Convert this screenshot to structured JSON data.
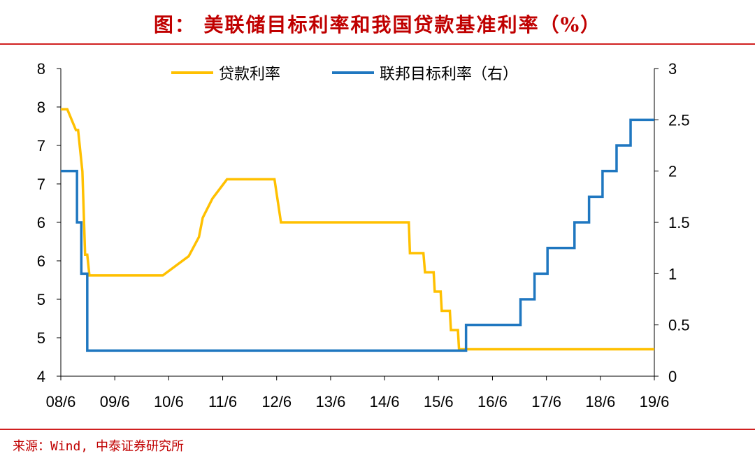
{
  "title": "图：  美联储目标利率和我国贷款基准利率（%）",
  "source": "来源：Wind, 中泰证券研究所",
  "chart_data": {
    "type": "line",
    "title": "美联储目标利率和我国贷款基准利率（%）",
    "x_ticks": [
      {
        "year": 2008.5,
        "label": "08/6"
      },
      {
        "year": 2009.5,
        "label": "09/6"
      },
      {
        "year": 2010.5,
        "label": "10/6"
      },
      {
        "year": 2011.5,
        "label": "11/6"
      },
      {
        "year": 2012.5,
        "label": "12/6"
      },
      {
        "year": 2013.5,
        "label": "13/6"
      },
      {
        "year": 2014.5,
        "label": "14/6"
      },
      {
        "year": 2015.5,
        "label": "15/6"
      },
      {
        "year": 2016.5,
        "label": "16/6"
      },
      {
        "year": 2017.5,
        "label": "17/6"
      },
      {
        "year": 2018.5,
        "label": "18/6"
      },
      {
        "year": 2019.5,
        "label": "19/6"
      }
    ],
    "xlim": [
      2008.5,
      2019.5
    ],
    "y_left": {
      "ylim": [
        4,
        8
      ],
      "ticks": [
        {
          "v": 8,
          "label": "8"
        },
        {
          "v": 7.5,
          "label": "8"
        },
        {
          "v": 7,
          "label": "7"
        },
        {
          "v": 6.5,
          "label": "7"
        },
        {
          "v": 6,
          "label": "6"
        },
        {
          "v": 5.5,
          "label": "6"
        },
        {
          "v": 5,
          "label": "5"
        },
        {
          "v": 4.5,
          "label": "5"
        },
        {
          "v": 4,
          "label": "4"
        }
      ]
    },
    "y_right": {
      "ylim": [
        0,
        3
      ],
      "ticks": [
        {
          "v": 3,
          "label": "3"
        },
        {
          "v": 2.5,
          "label": "2.5"
        },
        {
          "v": 2,
          "label": "2"
        },
        {
          "v": 1.5,
          "label": "1.5"
        },
        {
          "v": 1,
          "label": "1"
        },
        {
          "v": 0.5,
          "label": "0.5"
        },
        {
          "v": 0,
          "label": "0"
        }
      ]
    },
    "legend_position": "top-center",
    "series": [
      {
        "name": "贷款利率",
        "axis": "left",
        "color": "#ffc000",
        "points": [
          [
            2008.5,
            7.47
          ],
          [
            2008.62,
            7.47
          ],
          [
            2008.78,
            7.2
          ],
          [
            2008.82,
            7.2
          ],
          [
            2008.86,
            6.93
          ],
          [
            2008.9,
            6.66
          ],
          [
            2008.95,
            5.58
          ],
          [
            2008.99,
            5.58
          ],
          [
            2009.03,
            5.31
          ],
          [
            2010.39,
            5.31
          ],
          [
            2010.87,
            5.56
          ],
          [
            2011.06,
            5.81
          ],
          [
            2011.13,
            6.06
          ],
          [
            2011.31,
            6.31
          ],
          [
            2011.58,
            6.56
          ],
          [
            2012.46,
            6.56
          ],
          [
            2012.58,
            6.0
          ],
          [
            2014.95,
            6.0
          ],
          [
            2014.97,
            5.6
          ],
          [
            2015.22,
            5.6
          ],
          [
            2015.25,
            5.35
          ],
          [
            2015.41,
            5.35
          ],
          [
            2015.43,
            5.1
          ],
          [
            2015.54,
            5.1
          ],
          [
            2015.56,
            4.85
          ],
          [
            2015.71,
            4.85
          ],
          [
            2015.73,
            4.6
          ],
          [
            2015.86,
            4.6
          ],
          [
            2015.88,
            4.35
          ],
          [
            2019.5,
            4.35
          ]
        ]
      },
      {
        "name": "联邦目标利率（右）",
        "axis": "right",
        "color": "#1f77c0",
        "step": true,
        "points": [
          [
            2008.5,
            2.0
          ],
          [
            2008.8,
            1.5
          ],
          [
            2008.88,
            1.0
          ],
          [
            2008.99,
            0.25
          ],
          [
            2016.01,
            0.5
          ],
          [
            2017.02,
            0.75
          ],
          [
            2017.28,
            1.0
          ],
          [
            2017.52,
            1.25
          ],
          [
            2018.02,
            1.5
          ],
          [
            2018.29,
            1.75
          ],
          [
            2018.54,
            2.0
          ],
          [
            2018.8,
            2.25
          ],
          [
            2019.06,
            2.5
          ],
          [
            2019.5,
            2.5
          ]
        ]
      }
    ]
  }
}
